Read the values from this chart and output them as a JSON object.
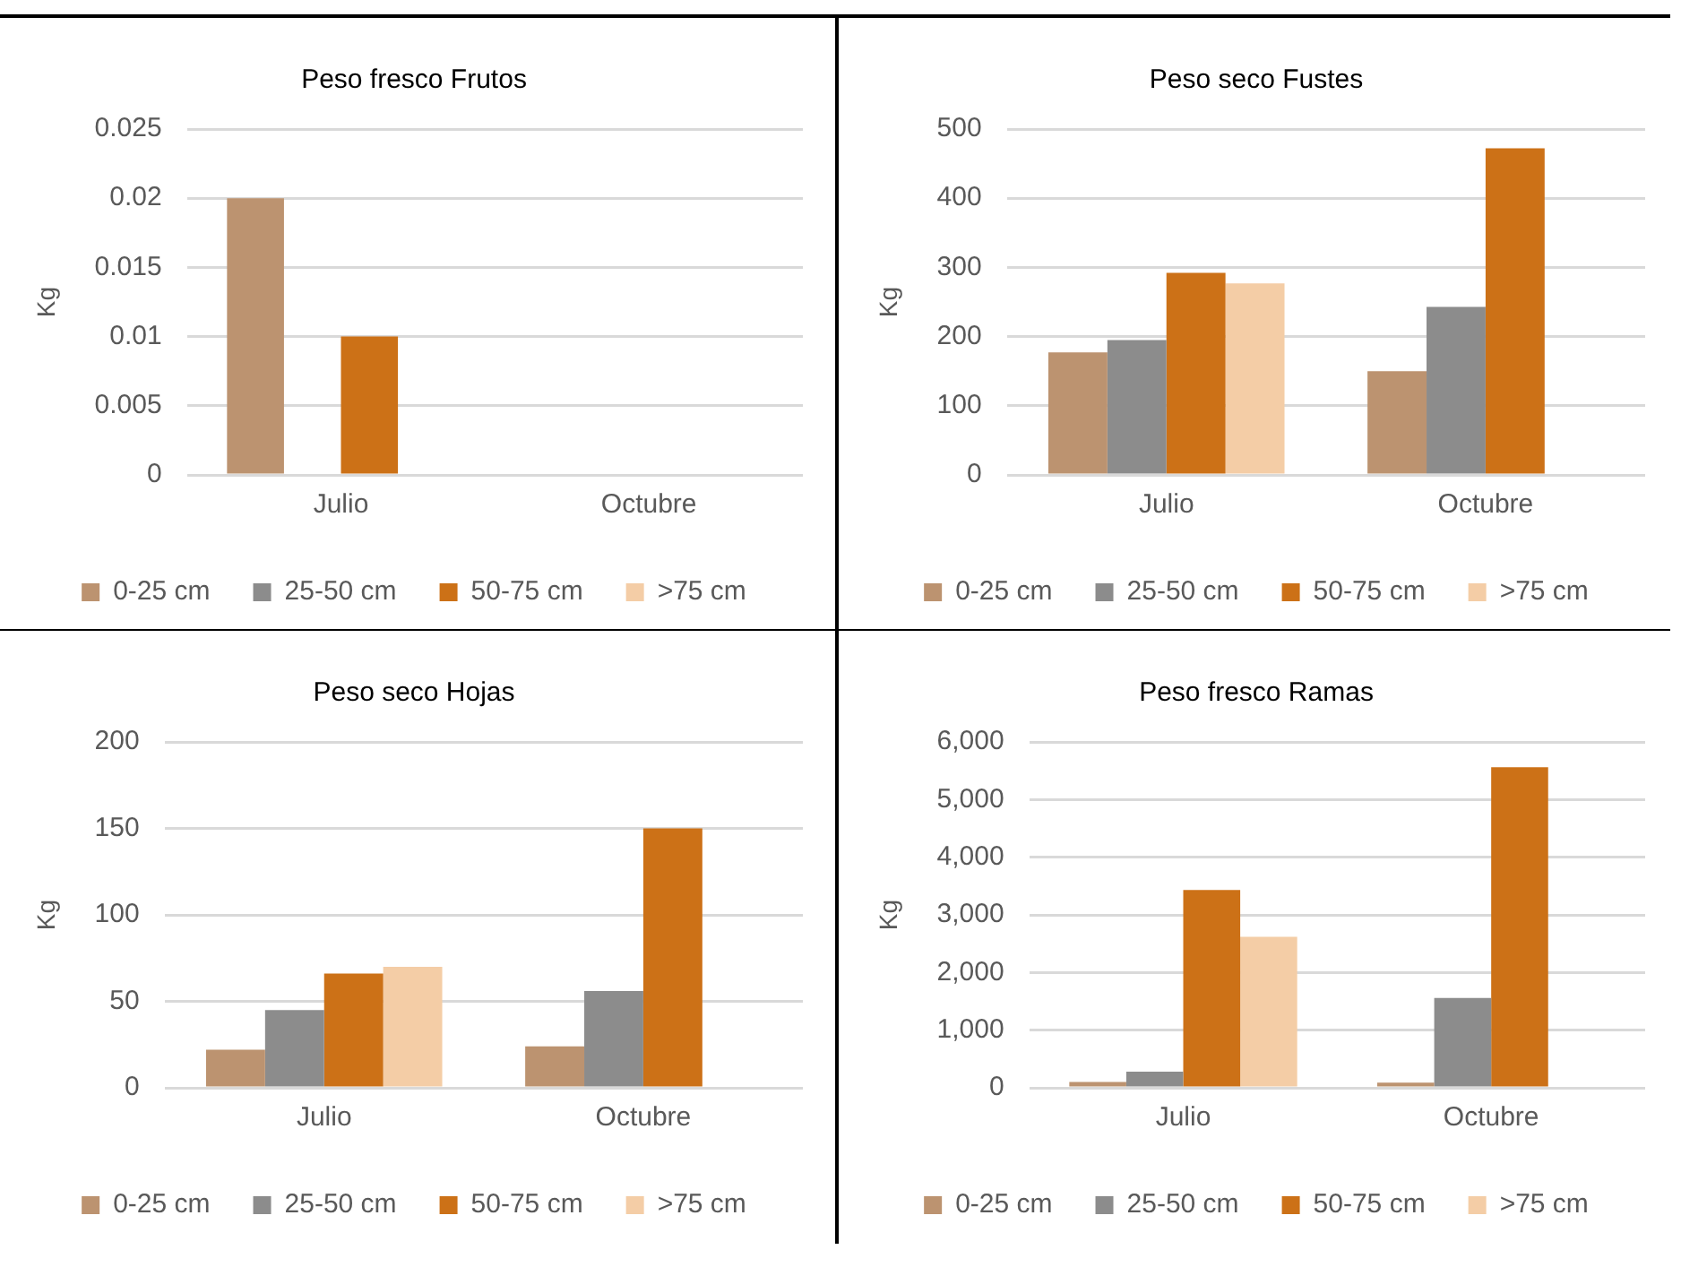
{
  "chart_data": [
    {
      "type": "bar",
      "title": "Peso fresco Frutos",
      "ylabel": "Kg",
      "categories": [
        "Julio",
        "Octubre"
      ],
      "series": [
        {
          "name": "0-25 cm",
          "color": "#bc9370",
          "values": [
            0.02,
            null
          ]
        },
        {
          "name": "25-50 cm",
          "color": "#8c8c8c",
          "values": [
            null,
            null
          ]
        },
        {
          "name": "50-75 cm",
          "color": "#cc7117",
          "values": [
            0.01,
            null
          ]
        },
        {
          "name": ">75 cm",
          "color": "#f4cda6",
          "values": [
            null,
            null
          ]
        }
      ],
      "ylim": [
        0,
        0.025
      ],
      "yticks": [
        0,
        0.005,
        0.01,
        0.015,
        0.02,
        0.025
      ],
      "grid": "y",
      "legend": "bottom"
    },
    {
      "type": "bar",
      "title": "Peso seco Fustes",
      "ylabel": "Kg",
      "categories": [
        "Julio",
        "Octubre"
      ],
      "series": [
        {
          "name": "0-25 cm",
          "color": "#bc9370",
          "values": [
            177,
            150
          ]
        },
        {
          "name": "25-50 cm",
          "color": "#8c8c8c",
          "values": [
            195,
            243
          ]
        },
        {
          "name": "50-75 cm",
          "color": "#cc7117",
          "values": [
            292,
            472
          ]
        },
        {
          "name": ">75 cm",
          "color": "#f4cda6",
          "values": [
            277,
            null
          ]
        }
      ],
      "ylim": [
        0,
        500
      ],
      "yticks": [
        0,
        100,
        200,
        300,
        400,
        500
      ],
      "grid": "y",
      "legend": "bottom"
    },
    {
      "type": "bar",
      "title": "Peso seco Hojas",
      "ylabel": "Kg",
      "categories": [
        "Julio",
        "Octubre"
      ],
      "series": [
        {
          "name": "0-25 cm",
          "color": "#bc9370",
          "values": [
            22,
            24
          ]
        },
        {
          "name": "25-50 cm",
          "color": "#8c8c8c",
          "values": [
            45,
            56
          ]
        },
        {
          "name": "50-75 cm",
          "color": "#cc7117",
          "values": [
            66,
            150
          ]
        },
        {
          "name": ">75 cm",
          "color": "#f4cda6",
          "values": [
            70,
            null
          ]
        }
      ],
      "ylim": [
        0,
        200
      ],
      "yticks": [
        0,
        50,
        100,
        150,
        200
      ],
      "grid": "y",
      "legend": "bottom"
    },
    {
      "type": "bar",
      "title": "Peso fresco Ramas",
      "ylabel": "Kg",
      "categories": [
        "Julio",
        "Octubre"
      ],
      "series": [
        {
          "name": "0-25 cm",
          "color": "#bc9370",
          "values": [
            100,
            90
          ]
        },
        {
          "name": "25-50 cm",
          "color": "#8c8c8c",
          "values": [
            280,
            1560
          ]
        },
        {
          "name": "50-75 cm",
          "color": "#cc7117",
          "values": [
            3430,
            5560
          ]
        },
        {
          "name": ">75 cm",
          "color": "#f4cda6",
          "values": [
            2620,
            null
          ]
        }
      ],
      "ylim": [
        0,
        6000
      ],
      "yticks": [
        0,
        {
          "value": 1000,
          "label": "1,000"
        },
        {
          "value": 2000,
          "label": "2,000"
        },
        {
          "value": 3000,
          "label": "3,000"
        },
        {
          "value": 4000,
          "label": "4,000"
        },
        {
          "value": 5000,
          "label": "5,000"
        },
        {
          "value": 6000,
          "label": "6,000"
        }
      ],
      "grid": "y",
      "legend": "bottom"
    }
  ]
}
